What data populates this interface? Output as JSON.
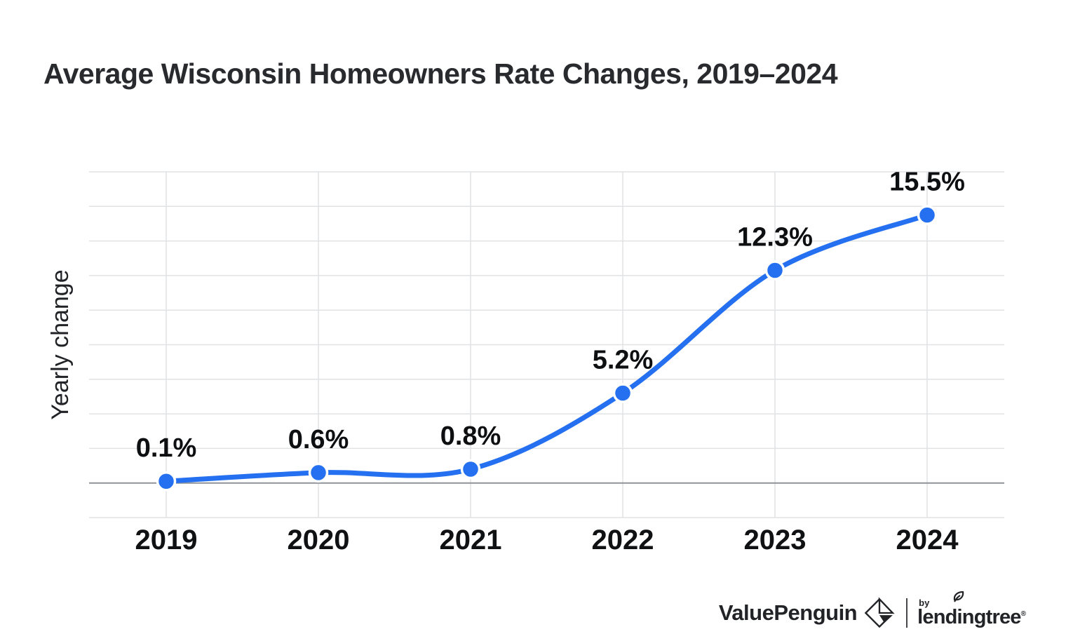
{
  "title": "Average Wisconsin Homeowners Rate Changes, 2019–2024",
  "chart_data": {
    "type": "line",
    "x": [
      "2019",
      "2020",
      "2021",
      "2022",
      "2023",
      "2024"
    ],
    "values": [
      0.1,
      0.6,
      0.8,
      5.2,
      12.3,
      15.5
    ],
    "point_labels": [
      "0.1%",
      "0.6%",
      "0.8%",
      "5.2%",
      "12.3%",
      "15.5%"
    ],
    "title": "Average Wisconsin Homeowners Rate Changes, 2019–2024",
    "xlabel": "",
    "ylabel": "Yearly change",
    "ylim": [
      -2,
      18
    ],
    "grid_step": 2,
    "grid": true,
    "legend": false,
    "colors": {
      "line": "#2470f0",
      "marker": "#2470f0",
      "marker_halo": "#ffffff",
      "gridline": "#e1e2e4",
      "zero_line": "#8f9398",
      "point_label": "#0e0f11",
      "axis_label": "#101113",
      "ylabel_text": "#202225"
    }
  },
  "footer": {
    "brand": "ValuePenguin",
    "by_label": "by",
    "sub_brand": "lendingtree",
    "reg_mark": "®",
    "icons": [
      "valuepenguin-origami-icon",
      "leaf-icon"
    ]
  }
}
